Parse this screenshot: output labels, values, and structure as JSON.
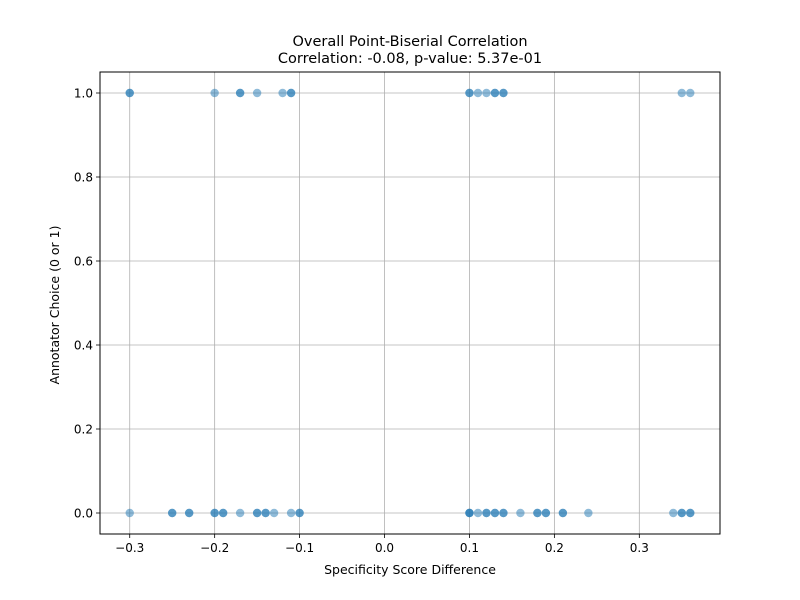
{
  "chart_data": {
    "type": "scatter",
    "title": "Overall Point-Biserial Correlation",
    "subtitle": "Correlation: -0.08, p-value: 5.37e-01",
    "xlabel": "Specificity Score Difference",
    "ylabel": "Annotator Choice (0 or 1)",
    "xlim": [
      -0.335,
      0.395
    ],
    "ylim": [
      -0.05,
      1.05
    ],
    "xticks": [
      -0.3,
      -0.2,
      -0.1,
      0.0,
      0.1,
      0.2,
      0.3
    ],
    "xtick_labels": [
      "−0.3",
      "−0.2",
      "−0.1",
      "0.0",
      "0.1",
      "0.2",
      "0.3"
    ],
    "yticks": [
      0.0,
      0.2,
      0.4,
      0.6,
      0.8,
      1.0
    ],
    "ytick_labels": [
      "0.0",
      "0.2",
      "0.4",
      "0.6",
      "0.8",
      "1.0"
    ],
    "grid": true,
    "marker_color": "#1f77b4",
    "marker_alpha": 0.5,
    "series": [
      {
        "points": [
          {
            "x": -0.3,
            "y": 1
          },
          {
            "x": -0.3,
            "y": 1
          },
          {
            "x": -0.2,
            "y": 1
          },
          {
            "x": -0.17,
            "y": 1
          },
          {
            "x": -0.17,
            "y": 1
          },
          {
            "x": -0.15,
            "y": 1
          },
          {
            "x": -0.12,
            "y": 1
          },
          {
            "x": -0.11,
            "y": 1
          },
          {
            "x": -0.11,
            "y": 1
          },
          {
            "x": 0.1,
            "y": 1
          },
          {
            "x": 0.1,
            "y": 1
          },
          {
            "x": 0.11,
            "y": 1
          },
          {
            "x": 0.12,
            "y": 1
          },
          {
            "x": 0.13,
            "y": 1
          },
          {
            "x": 0.13,
            "y": 1
          },
          {
            "x": 0.14,
            "y": 1
          },
          {
            "x": 0.14,
            "y": 1
          },
          {
            "x": 0.35,
            "y": 1
          },
          {
            "x": 0.36,
            "y": 1
          },
          {
            "x": -0.3,
            "y": 0
          },
          {
            "x": -0.25,
            "y": 0
          },
          {
            "x": -0.25,
            "y": 0
          },
          {
            "x": -0.23,
            "y": 0
          },
          {
            "x": -0.23,
            "y": 0
          },
          {
            "x": -0.2,
            "y": 0
          },
          {
            "x": -0.2,
            "y": 0
          },
          {
            "x": -0.19,
            "y": 0
          },
          {
            "x": -0.19,
            "y": 0
          },
          {
            "x": -0.17,
            "y": 0
          },
          {
            "x": -0.15,
            "y": 0
          },
          {
            "x": -0.15,
            "y": 0
          },
          {
            "x": -0.14,
            "y": 0
          },
          {
            "x": -0.14,
            "y": 0
          },
          {
            "x": -0.13,
            "y": 0
          },
          {
            "x": -0.11,
            "y": 0
          },
          {
            "x": -0.1,
            "y": 0
          },
          {
            "x": -0.1,
            "y": 0
          },
          {
            "x": 0.1,
            "y": 0
          },
          {
            "x": 0.1,
            "y": 0
          },
          {
            "x": 0.1,
            "y": 0
          },
          {
            "x": 0.11,
            "y": 0
          },
          {
            "x": 0.12,
            "y": 0
          },
          {
            "x": 0.12,
            "y": 0
          },
          {
            "x": 0.13,
            "y": 0
          },
          {
            "x": 0.13,
            "y": 0
          },
          {
            "x": 0.14,
            "y": 0
          },
          {
            "x": 0.14,
            "y": 0
          },
          {
            "x": 0.16,
            "y": 0
          },
          {
            "x": 0.18,
            "y": 0
          },
          {
            "x": 0.18,
            "y": 0
          },
          {
            "x": 0.19,
            "y": 0
          },
          {
            "x": 0.19,
            "y": 0
          },
          {
            "x": 0.21,
            "y": 0
          },
          {
            "x": 0.21,
            "y": 0
          },
          {
            "x": 0.24,
            "y": 0
          },
          {
            "x": 0.34,
            "y": 0
          },
          {
            "x": 0.35,
            "y": 0
          },
          {
            "x": 0.35,
            "y": 0
          },
          {
            "x": 0.36,
            "y": 0
          },
          {
            "x": 0.36,
            "y": 0
          }
        ]
      }
    ]
  }
}
